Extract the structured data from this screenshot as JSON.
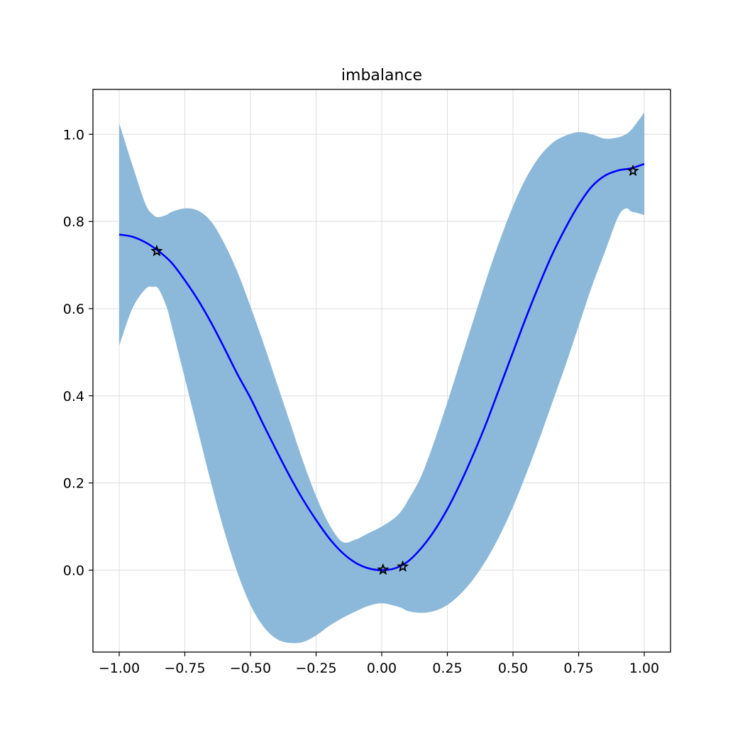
{
  "chart_data": {
    "type": "line",
    "title": "imbalance",
    "xlabel": "",
    "ylabel": "",
    "xlim": [
      -1.1,
      1.1
    ],
    "ylim": [
      -0.188,
      1.103
    ],
    "xticks": [
      -1.0,
      -0.75,
      -0.5,
      -0.25,
      0.0,
      0.25,
      0.5,
      0.75,
      1.0
    ],
    "xtick_labels": [
      "−1.00",
      "−0.75",
      "−0.50",
      "−0.25",
      "0.00",
      "0.25",
      "0.50",
      "0.75",
      "1.00"
    ],
    "yticks": [
      0.0,
      0.2,
      0.4,
      0.6,
      0.8,
      1.0
    ],
    "ytick_labels": [
      "0.0",
      "0.2",
      "0.4",
      "0.6",
      "0.8",
      "1.0"
    ],
    "grid": true,
    "series": [
      {
        "kind": "mean",
        "color": "#0000ff",
        "x": [
          -1.0,
          -0.95,
          -0.9,
          -0.85,
          -0.8,
          -0.75,
          -0.7,
          -0.65,
          -0.6,
          -0.55,
          -0.5,
          -0.45,
          -0.4,
          -0.35,
          -0.3,
          -0.25,
          -0.2,
          -0.15,
          -0.1,
          -0.05,
          0.0,
          0.05,
          0.1,
          0.15,
          0.2,
          0.25,
          0.3,
          0.35,
          0.4,
          0.45,
          0.5,
          0.55,
          0.6,
          0.65,
          0.7,
          0.75,
          0.8,
          0.85,
          0.9,
          0.95,
          1.0
        ],
        "y": [
          0.77,
          0.765,
          0.752,
          0.732,
          0.705,
          0.665,
          0.62,
          0.568,
          0.51,
          0.45,
          0.395,
          0.333,
          0.273,
          0.215,
          0.162,
          0.115,
          0.073,
          0.04,
          0.017,
          0.004,
          0.0,
          0.004,
          0.02,
          0.05,
          0.09,
          0.14,
          0.2,
          0.267,
          0.34,
          0.42,
          0.5,
          0.58,
          0.655,
          0.725,
          0.785,
          0.838,
          0.88,
          0.905,
          0.917,
          0.922,
          0.932
        ]
      },
      {
        "kind": "confidence-band",
        "color": "#8cb9d9",
        "x": [
          -1.0,
          -0.95,
          -0.9,
          -0.87,
          -0.85,
          -0.82,
          -0.8,
          -0.75,
          -0.7,
          -0.65,
          -0.6,
          -0.55,
          -0.5,
          -0.45,
          -0.4,
          -0.35,
          -0.3,
          -0.25,
          -0.2,
          -0.15,
          -0.1,
          -0.05,
          0.0,
          0.05,
          0.08,
          0.1,
          0.15,
          0.2,
          0.25,
          0.3,
          0.35,
          0.4,
          0.45,
          0.5,
          0.55,
          0.6,
          0.65,
          0.7,
          0.75,
          0.8,
          0.85,
          0.9,
          0.93,
          0.95,
          0.97,
          1.0
        ],
        "lower": [
          0.515,
          0.6,
          0.645,
          0.65,
          0.645,
          0.605,
          0.56,
          0.44,
          0.32,
          0.2,
          0.09,
          -0.005,
          -0.08,
          -0.13,
          -0.158,
          -0.167,
          -0.165,
          -0.15,
          -0.128,
          -0.11,
          -0.095,
          -0.082,
          -0.076,
          -0.082,
          -0.088,
          -0.094,
          -0.098,
          -0.094,
          -0.08,
          -0.055,
          -0.02,
          0.025,
          0.08,
          0.145,
          0.22,
          0.3,
          0.385,
          0.47,
          0.56,
          0.65,
          0.73,
          0.81,
          0.83,
          0.823,
          0.82,
          0.815
        ],
        "upper": [
          1.025,
          0.93,
          0.84,
          0.815,
          0.81,
          0.815,
          0.822,
          0.83,
          0.825,
          0.8,
          0.75,
          0.685,
          0.605,
          0.52,
          0.43,
          0.34,
          0.25,
          0.17,
          0.105,
          0.065,
          0.07,
          0.085,
          0.1,
          0.12,
          0.14,
          0.16,
          0.215,
          0.295,
          0.385,
          0.48,
          0.575,
          0.67,
          0.757,
          0.835,
          0.9,
          0.948,
          0.98,
          0.997,
          1.005,
          1.0,
          0.99,
          0.993,
          1.0,
          1.01,
          1.025,
          1.05
        ]
      },
      {
        "kind": "observations",
        "marker": "star",
        "color": "#000000",
        "x": [
          -0.857,
          0.005,
          0.08,
          0.957
        ],
        "y": [
          0.732,
          0.001,
          0.008,
          0.916
        ]
      }
    ]
  }
}
